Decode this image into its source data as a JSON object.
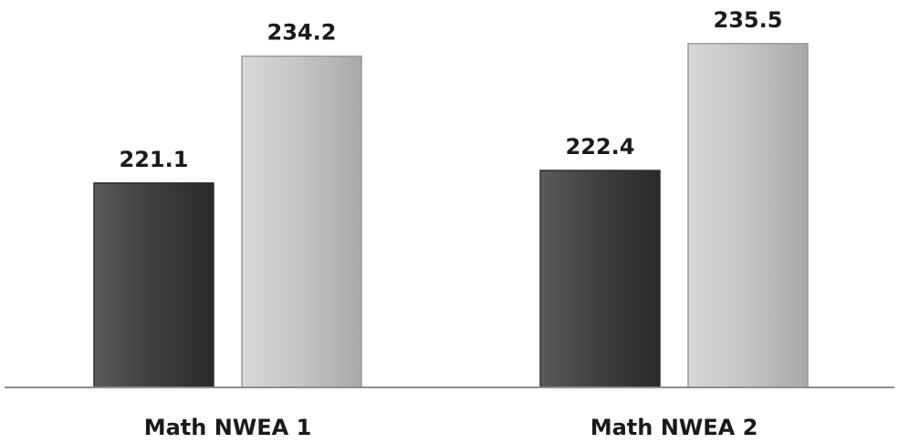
{
  "chart_data": {
    "type": "bar",
    "categories": [
      "Math NWEA 1",
      "Math NWEA 2"
    ],
    "series": [
      {
        "values": [
          221.1,
          222.4
        ],
        "color": "#4a4a4a"
      },
      {
        "values": [
          234.2,
          235.5
        ],
        "color": "#c9c9c9"
      }
    ],
    "data_labels": [
      [
        "221.1",
        "222.4"
      ],
      [
        "234.2",
        "235.5"
      ]
    ],
    "title": "",
    "xlabel": "",
    "ylabel": "",
    "ylim": [
      200,
      240
    ],
    "grid": false,
    "legend": "none"
  }
}
